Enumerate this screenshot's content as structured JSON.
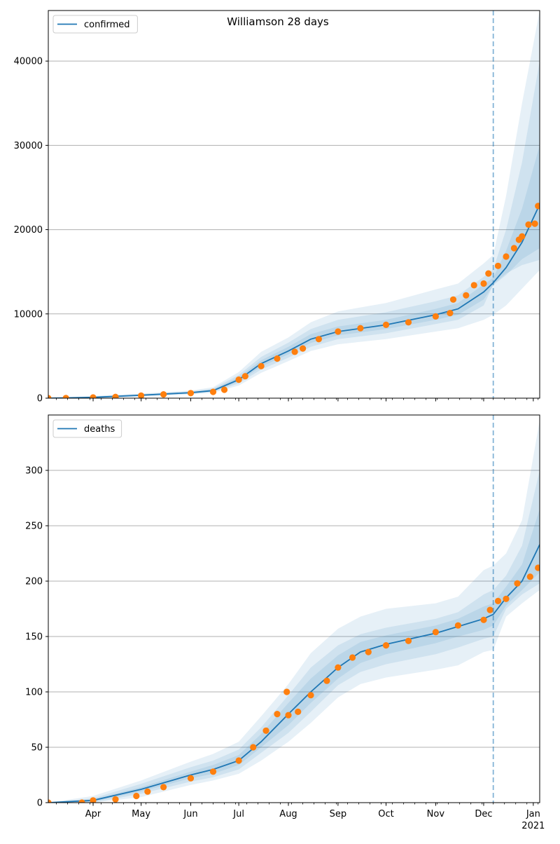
{
  "title": "Williamson 28 days",
  "colors": {
    "line": "#1f77b4",
    "band": "#1f77b4",
    "observed": "#ff7f0e",
    "grid": "#b0b0b0",
    "vline": "#1f77b4"
  },
  "x_axis": {
    "month_labels": [
      "Apr",
      "May",
      "Jun",
      "Jul",
      "Aug",
      "Sep",
      "Oct",
      "Nov",
      "Dec",
      "Jan"
    ],
    "year_label": "2021",
    "range": [
      "2020-03-04",
      "2021-01-05"
    ],
    "forecast_start": "2020-12-07"
  },
  "chart_data": [
    {
      "type": "line",
      "title": "Williamson 28 days",
      "legend": {
        "label": "confirmed",
        "position": "top-left"
      },
      "ylim": [
        0,
        46000
      ],
      "yticks": [
        0,
        10000,
        20000,
        30000,
        40000
      ],
      "grid": true,
      "forecast_start": "2020-12-07",
      "model": {
        "name": "confirmed",
        "x": [
          "2020-03-04",
          "2020-04-01",
          "2020-05-01",
          "2020-06-01",
          "2020-06-15",
          "2020-07-01",
          "2020-07-15",
          "2020-08-01",
          "2020-08-15",
          "2020-09-01",
          "2020-10-01",
          "2020-11-01",
          "2020-11-15",
          "2020-12-01",
          "2020-12-07",
          "2020-12-15",
          "2020-12-25",
          "2021-01-05"
        ],
        "y": [
          0,
          100,
          350,
          650,
          900,
          2200,
          4100,
          5600,
          7000,
          7900,
          8700,
          9900,
          10600,
          12600,
          13700,
          15500,
          18500,
          23000
        ],
        "bands": [
          {
            "lower": [
              0,
              20,
              200,
              450,
              650,
              1500,
              3000,
              4400,
              5600,
              6400,
              7000,
              7900,
              8300,
              9300,
              9900,
              11000,
              13000,
              15200
            ],
            "upper": [
              0,
              250,
              550,
              900,
              1300,
              3100,
              5500,
              7200,
              9000,
              10300,
              11300,
              12900,
              13600,
              16000,
              17000,
              24000,
              35000,
              48000
            ]
          },
          {
            "lower": [
              0,
              40,
              250,
              520,
              750,
              1750,
              3400,
              4800,
              6100,
              7000,
              7700,
              8800,
              9300,
              11000,
              13500,
              14800,
              15800,
              16400
            ],
            "upper": [
              0,
              200,
              480,
              800,
              1150,
              2750,
              4900,
              6600,
              8200,
              9300,
              10200,
              11500,
              12200,
              14400,
              15300,
              20000,
              28000,
              40000
            ]
          },
          {
            "lower": [
              0,
              60,
              290,
              580,
              820,
              1950,
              3750,
              5200,
              6550,
              7450,
              8200,
              9300,
              9900,
              11700,
              13400,
              14600,
              16500,
              17800
            ],
            "upper": [
              0,
              150,
              420,
              730,
              1020,
              2500,
              4500,
              6100,
              7600,
              8500,
              9300,
              10600,
              11300,
              13500,
              14300,
              17500,
              22500,
              30000
            ]
          }
        ]
      },
      "observed": {
        "x": [
          "2020-03-04",
          "2020-03-15",
          "2020-04-01",
          "2020-04-15",
          "2020-05-01",
          "2020-05-15",
          "2020-06-01",
          "2020-06-15",
          "2020-06-22",
          "2020-07-01",
          "2020-07-05",
          "2020-07-15",
          "2020-07-25",
          "2020-08-05",
          "2020-08-10",
          "2020-08-20",
          "2020-09-01",
          "2020-09-15",
          "2020-10-01",
          "2020-10-15",
          "2020-11-01",
          "2020-11-10",
          "2020-11-12",
          "2020-11-20",
          "2020-11-25",
          "2020-12-01",
          "2020-12-04",
          "2020-12-10",
          "2020-12-15",
          "2020-12-20",
          "2020-12-23",
          "2020-12-25",
          "2020-12-29",
          "2021-01-02",
          "2021-01-04"
        ],
        "y": [
          0,
          20,
          80,
          150,
          300,
          450,
          600,
          750,
          1000,
          2200,
          2600,
          3800,
          4700,
          5500,
          5900,
          7000,
          7900,
          8300,
          8700,
          9000,
          9700,
          10100,
          11700,
          12200,
          13400,
          13600,
          14800,
          15700,
          16800,
          17800,
          18800,
          19200,
          20600,
          20700,
          22800
        ]
      }
    },
    {
      "type": "line",
      "legend": {
        "label": "deaths",
        "position": "top-left"
      },
      "ylim": [
        0,
        350
      ],
      "yticks": [
        0,
        50,
        100,
        150,
        200,
        250,
        300
      ],
      "grid": true,
      "forecast_start": "2020-12-07",
      "model": {
        "name": "deaths",
        "x": [
          "2020-03-04",
          "2020-04-01",
          "2020-05-01",
          "2020-06-01",
          "2020-06-15",
          "2020-07-01",
          "2020-07-15",
          "2020-08-01",
          "2020-08-15",
          "2020-09-01",
          "2020-09-15",
          "2020-10-01",
          "2020-11-01",
          "2020-11-15",
          "2020-12-01",
          "2020-12-07",
          "2020-12-15",
          "2020-12-25",
          "2021-01-05"
        ],
        "y": [
          0,
          2,
          12,
          25,
          30,
          38,
          55,
          80,
          100,
          122,
          136,
          143,
          153,
          159,
          166,
          170,
          185,
          200,
          233
        ],
        "bands": [
          {
            "lower": [
              0,
              0,
              5,
              16,
              20,
              26,
              38,
              55,
              72,
              95,
              107,
              113,
              120,
              124,
              136,
              138,
              168,
              180,
              192
            ],
            "upper": [
              0,
              6,
              20,
              37,
              44,
              55,
              78,
              107,
              135,
              157,
              168,
              175,
              180,
              186,
              210,
              214,
              225,
              255,
              345
            ]
          },
          {
            "lower": [
              0,
              0,
              8,
              19,
              23,
              30,
              45,
              63,
              82,
              106,
              118,
              125,
              134,
              140,
              148,
              150,
              175,
              188,
              198
            ],
            "upper": [
              0,
              4,
              17,
              32,
              38,
              48,
              68,
              97,
              122,
              142,
              152,
              158,
              166,
              172,
              188,
              192,
              205,
              232,
              300
            ]
          },
          {
            "lower": [
              0,
              1,
              10,
              22,
              26,
              34,
              50,
              70,
              90,
              112,
              126,
              134,
              144,
              150,
              156,
              160,
              178,
              192,
              208
            ],
            "upper": [
              0,
              3,
              14,
              28,
              34,
              43,
              62,
              90,
              112,
              133,
              145,
              151,
              160,
              166,
              177,
              180,
              195,
              215,
              265
            ]
          }
        ]
      },
      "observed": {
        "x": [
          "2020-03-04",
          "2020-03-25",
          "2020-04-01",
          "2020-04-15",
          "2020-04-28",
          "2020-05-05",
          "2020-05-15",
          "2020-06-01",
          "2020-06-15",
          "2020-07-01",
          "2020-07-10",
          "2020-07-18",
          "2020-07-25",
          "2020-07-31",
          "2020-08-01",
          "2020-08-07",
          "2020-08-15",
          "2020-08-25",
          "2020-09-01",
          "2020-09-10",
          "2020-09-20",
          "2020-10-01",
          "2020-10-15",
          "2020-11-01",
          "2020-11-15",
          "2020-12-01",
          "2020-12-05",
          "2020-12-10",
          "2020-12-15",
          "2020-12-22",
          "2020-12-30",
          "2021-01-04"
        ],
        "y": [
          0,
          0,
          2,
          3,
          6,
          10,
          14,
          22,
          28,
          38,
          50,
          65,
          80,
          100,
          79,
          82,
          97,
          110,
          122,
          131,
          136,
          142,
          146,
          154,
          160,
          165,
          174,
          182,
          184,
          198,
          204,
          212
        ]
      }
    }
  ]
}
